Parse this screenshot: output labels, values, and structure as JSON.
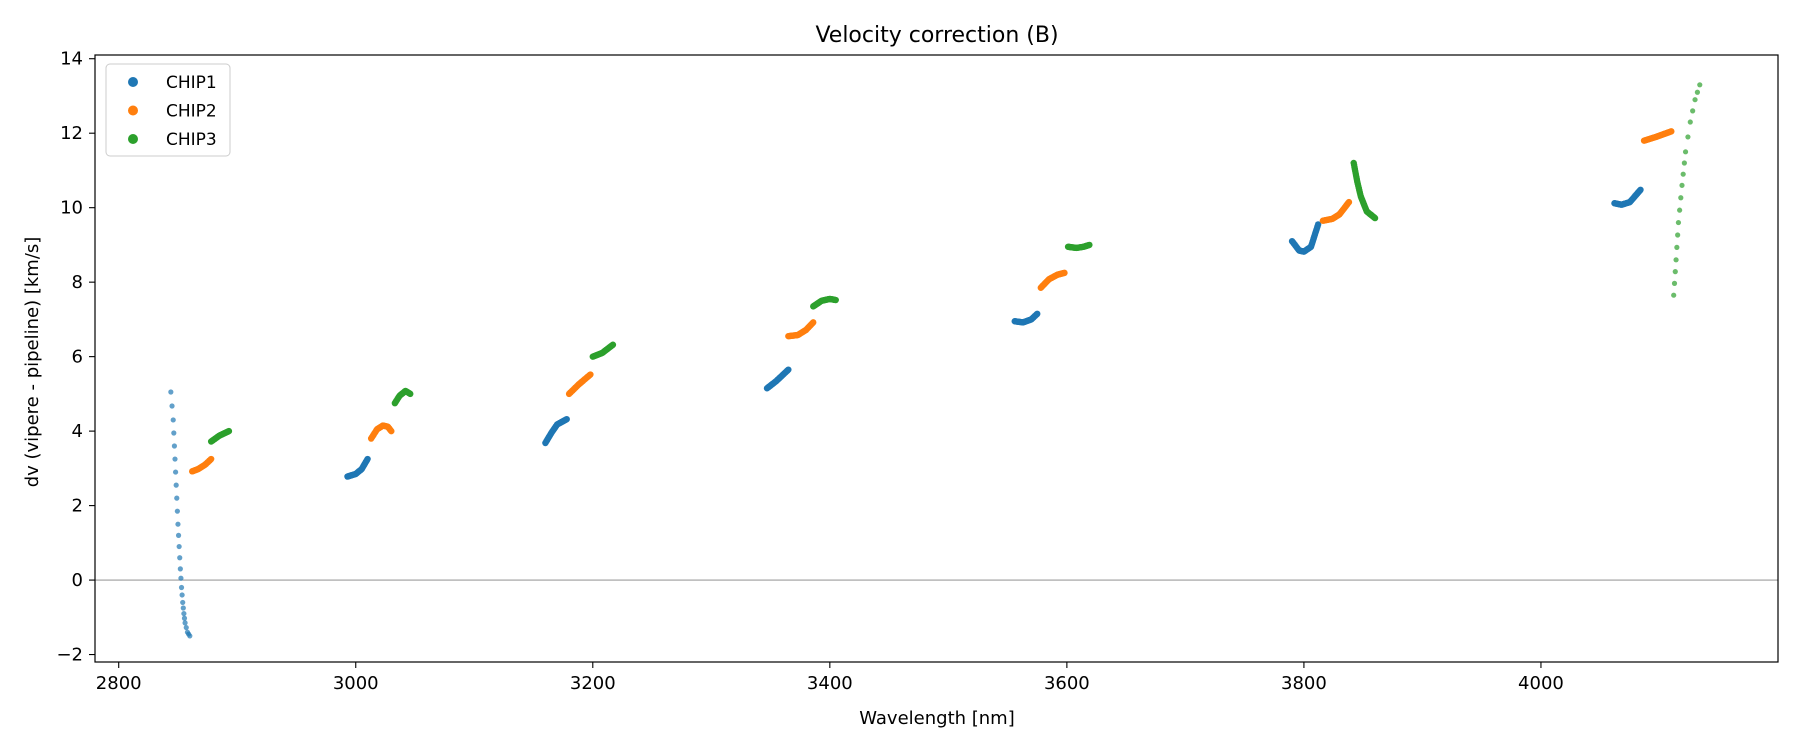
{
  "chart_data": {
    "type": "scatter",
    "title": "Velocity correction (B)",
    "xlabel": "Wavelength [nm]",
    "ylabel": "dv (vipere - pipeline) [km/s]",
    "xlim": [
      2780,
      4200
    ],
    "ylim": [
      -2.2,
      14.1
    ],
    "xticks": [
      2800,
      3000,
      3200,
      3400,
      3600,
      3800,
      4000
    ],
    "yticks": [
      -2,
      0,
      2,
      4,
      6,
      8,
      10,
      12,
      14
    ],
    "hline": 0,
    "grid": false,
    "legend_position": "top-left",
    "series": [
      {
        "name": "CHIP1",
        "color": "#1f77b4",
        "segments": [
          {
            "points": [
              [
                2844,
                5.05
              ],
              [
                2846,
                4.3
              ],
              [
                2847,
                3.6
              ],
              [
                2848,
                2.9
              ],
              [
                2849,
                2.2
              ],
              [
                2850,
                1.5
              ],
              [
                2851,
                0.9
              ],
              [
                2852,
                0.3
              ],
              [
                2853,
                -0.2
              ],
              [
                2854,
                -0.6
              ],
              [
                2855,
                -0.9
              ],
              [
                2856,
                -1.15
              ],
              [
                2858,
                -1.4
              ],
              [
                2860,
                -1.5
              ]
            ],
            "density": 0.55,
            "alpha": 0.7
          },
          {
            "points": [
              [
                2993,
                2.78
              ],
              [
                3000,
                2.85
              ],
              [
                3005,
                2.98
              ],
              [
                3010,
                3.25
              ]
            ]
          },
          {
            "points": [
              [
                3160,
                3.68
              ],
              [
                3165,
                3.95
              ],
              [
                3170,
                4.18
              ],
              [
                3178,
                4.32
              ]
            ]
          },
          {
            "points": [
              [
                3347,
                5.15
              ],
              [
                3355,
                5.35
              ],
              [
                3365,
                5.65
              ]
            ]
          },
          {
            "points": [
              [
                3556,
                6.95
              ],
              [
                3563,
                6.92
              ],
              [
                3570,
                7.0
              ],
              [
                3575,
                7.15
              ]
            ]
          },
          {
            "points": [
              [
                3790,
                9.1
              ],
              [
                3796,
                8.85
              ],
              [
                3800,
                8.82
              ],
              [
                3806,
                8.95
              ],
              [
                3812,
                9.55
              ]
            ]
          },
          {
            "points": [
              [
                4062,
                10.12
              ],
              [
                4068,
                10.08
              ],
              [
                4075,
                10.15
              ],
              [
                4084,
                10.48
              ]
            ]
          }
        ]
      },
      {
        "name": "CHIP2",
        "color": "#ff7f0e",
        "segments": [
          {
            "points": [
              [
                2862,
                2.92
              ],
              [
                2867,
                2.98
              ],
              [
                2873,
                3.1
              ],
              [
                2878,
                3.25
              ]
            ]
          },
          {
            "points": [
              [
                3013,
                3.8
              ],
              [
                3018,
                4.05
              ],
              [
                3023,
                4.15
              ],
              [
                3027,
                4.12
              ],
              [
                3030,
                4.0
              ]
            ]
          },
          {
            "points": [
              [
                3180,
                5.0
              ],
              [
                3188,
                5.25
              ],
              [
                3198,
                5.52
              ]
            ]
          },
          {
            "points": [
              [
                3365,
                6.55
              ],
              [
                3373,
                6.58
              ],
              [
                3380,
                6.72
              ],
              [
                3386,
                6.92
              ]
            ]
          },
          {
            "points": [
              [
                3578,
                7.85
              ],
              [
                3585,
                8.08
              ],
              [
                3592,
                8.2
              ],
              [
                3598,
                8.25
              ]
            ]
          },
          {
            "points": [
              [
                3816,
                9.65
              ],
              [
                3824,
                9.7
              ],
              [
                3830,
                9.82
              ],
              [
                3838,
                10.15
              ]
            ]
          },
          {
            "points": [
              [
                4087,
                11.8
              ],
              [
                4097,
                11.9
              ],
              [
                4110,
                12.05
              ]
            ]
          }
        ]
      },
      {
        "name": "CHIP3",
        "color": "#2ca02c",
        "segments": [
          {
            "points": [
              [
                2878,
                3.72
              ],
              [
                2885,
                3.88
              ],
              [
                2893,
                4.0
              ]
            ]
          },
          {
            "points": [
              [
                3033,
                4.75
              ],
              [
                3037,
                4.95
              ],
              [
                3042,
                5.08
              ],
              [
                3046,
                5.0
              ]
            ]
          },
          {
            "points": [
              [
                3200,
                6.0
              ],
              [
                3208,
                6.1
              ],
              [
                3217,
                6.32
              ]
            ]
          },
          {
            "points": [
              [
                3386,
                7.35
              ],
              [
                3393,
                7.5
              ],
              [
                3400,
                7.55
              ],
              [
                3405,
                7.52
              ]
            ]
          },
          {
            "points": [
              [
                3601,
                8.95
              ],
              [
                3608,
                8.92
              ],
              [
                3614,
                8.95
              ],
              [
                3619,
                9.0
              ]
            ]
          },
          {
            "points": [
              [
                3842,
                11.2
              ],
              [
                3845,
                10.7
              ],
              [
                3848,
                10.3
              ],
              [
                3853,
                9.9
              ],
              [
                3860,
                9.72
              ]
            ]
          },
          {
            "points": [
              [
                4112,
                7.65
              ],
              [
                4114,
                8.6
              ],
              [
                4116,
                9.6
              ],
              [
                4119,
                10.6
              ],
              [
                4122,
                11.5
              ],
              [
                4126,
                12.3
              ],
              [
                4130,
                12.9
              ],
              [
                4134,
                13.3
              ]
            ],
            "density": 0.55,
            "alpha": 0.7
          }
        ]
      }
    ]
  }
}
